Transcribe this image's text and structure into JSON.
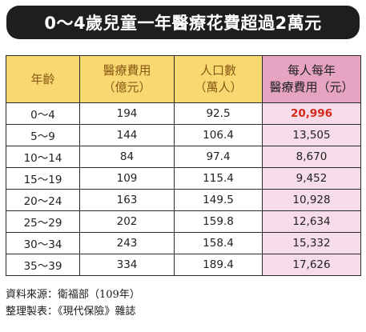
{
  "title": "0～4歲兒童一年醫療花費超過2萬元",
  "table": {
    "headers": [
      [
        "年齡"
      ],
      [
        "醫療費用",
        "（億元）"
      ],
      [
        "人口數",
        "（萬人）"
      ],
      [
        "每人每年",
        "醫療費用（元）"
      ]
    ],
    "rows": [
      [
        "0～4",
        "194",
        "92.5",
        "20,996"
      ],
      [
        "5～9",
        "144",
        "106.4",
        "13,505"
      ],
      [
        "10～14",
        "84",
        "97.4",
        "8,670"
      ],
      [
        "15～19",
        "109",
        "115.4",
        "9,452"
      ],
      [
        "20～24",
        "163",
        "149.5",
        "10,928"
      ],
      [
        "25～29",
        "202",
        "159.8",
        "12,634"
      ],
      [
        "30～34",
        "243",
        "158.4",
        "15,332"
      ],
      [
        "35～39",
        "334",
        "189.4",
        "17,626"
      ]
    ]
  },
  "footer": {
    "source": "資料來源：衛福部（109年）",
    "compiled_by": "整理製表：《現代保險》雜誌"
  },
  "colors": {
    "title_bg": "#1e1e1e",
    "header_yellow": "#f8d870",
    "header_pink": "#e7a3c2",
    "column_pink": "#f5dce8",
    "highlight_red": "#d42a1c"
  }
}
